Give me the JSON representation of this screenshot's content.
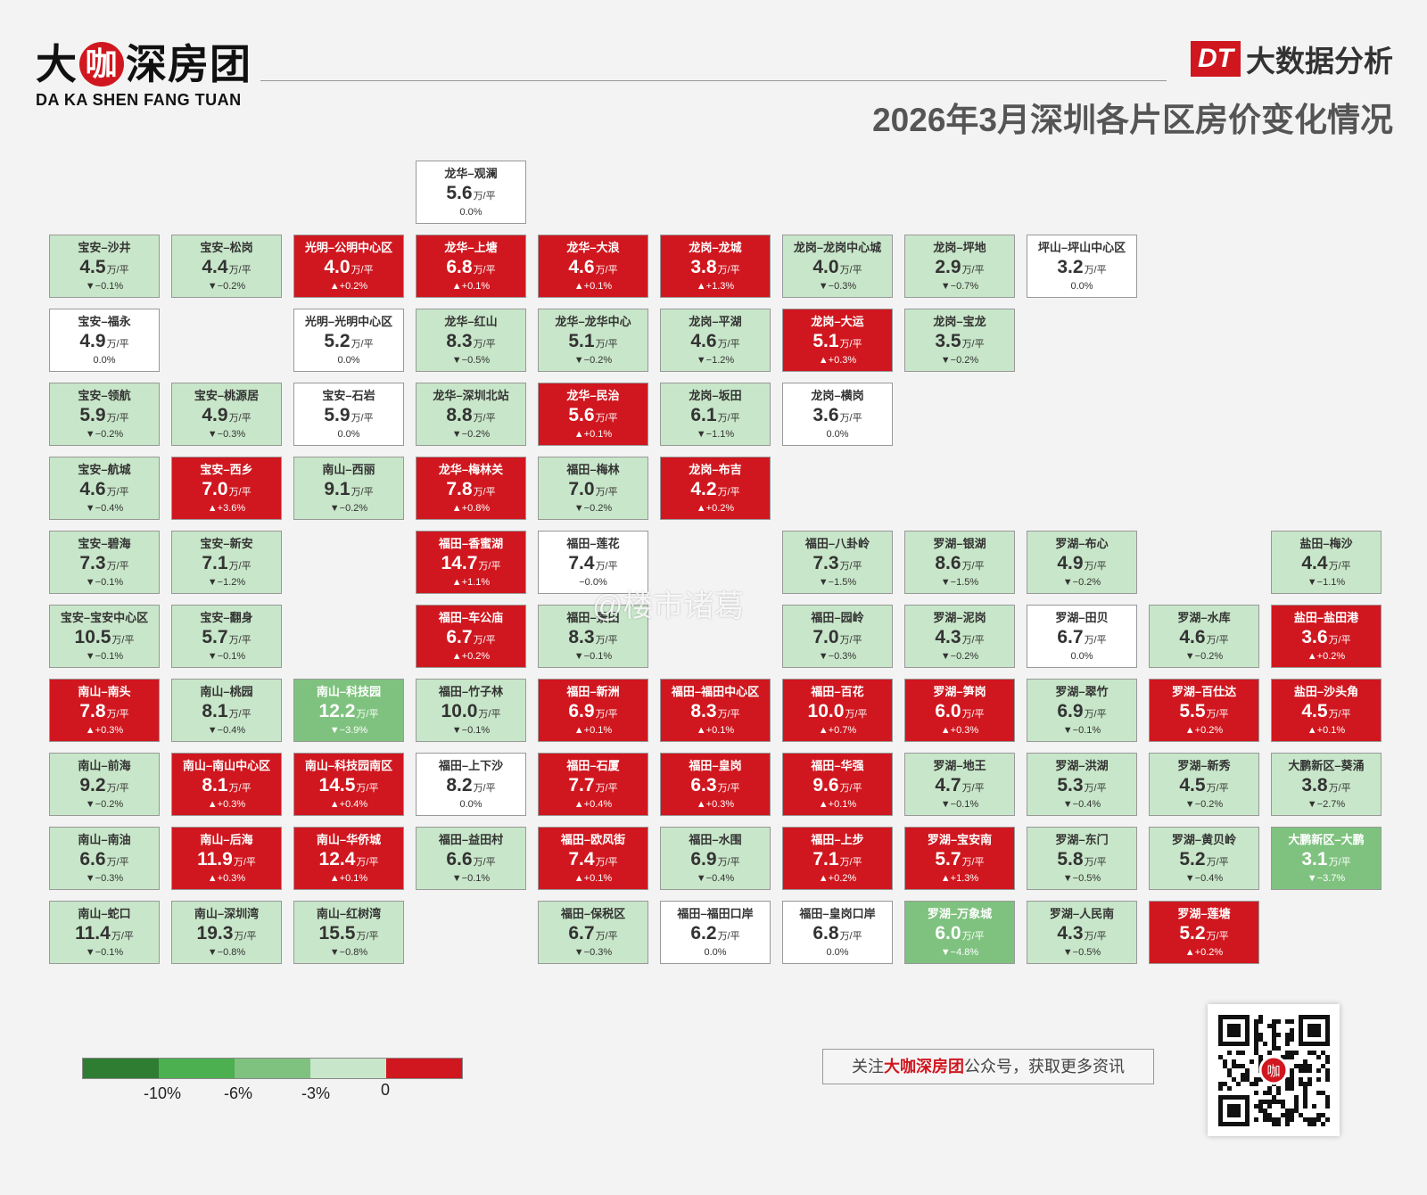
{
  "brand": {
    "logo_part1": "大",
    "logo_part2": "咖",
    "logo_part3": "深房团",
    "logo_sub": "DA KA SHEN FANG TUAN",
    "dt_badge": "DT",
    "dt_text": "大数据分析"
  },
  "chart_data": {
    "type": "heatmap",
    "title": "2026年3月深圳各片区房价变化情况",
    "unit": "万/平",
    "colors": {
      "rise": "#d0171f",
      "flat": "#ffffff",
      "fall_0_3": "#c8e6c9",
      "fall_3_6": "#7fc27f",
      "fall_6_10": "#4caf50",
      "fall_10_plus": "#2e7d32"
    },
    "cells": [
      {
        "name": "龙华–观澜",
        "price": "5.6",
        "change": "0.0%",
        "row": 0,
        "col": 3
      },
      {
        "name": "宝安–沙井",
        "price": "4.5",
        "change": "▼−0.1%",
        "row": 1,
        "col": 0
      },
      {
        "name": "宝安–松岗",
        "price": "4.4",
        "change": "▼−0.2%",
        "row": 1,
        "col": 1
      },
      {
        "name": "光明–公明中心区",
        "price": "4.0",
        "change": "▲+0.2%",
        "row": 1,
        "col": 2
      },
      {
        "name": "龙华–上塘",
        "price": "6.8",
        "change": "▲+0.1%",
        "row": 1,
        "col": 3
      },
      {
        "name": "龙华–大浪",
        "price": "4.6",
        "change": "▲+0.1%",
        "row": 1,
        "col": 4
      },
      {
        "name": "龙岗–龙城",
        "price": "3.8",
        "change": "▲+1.3%",
        "row": 1,
        "col": 5
      },
      {
        "name": "龙岗–龙岗中心城",
        "price": "4.0",
        "change": "▼−0.3%",
        "row": 1,
        "col": 6
      },
      {
        "name": "龙岗–坪地",
        "price": "2.9",
        "change": "▼−0.7%",
        "row": 1,
        "col": 7
      },
      {
        "name": "坪山–坪山中心区",
        "price": "3.2",
        "change": "0.0%",
        "row": 1,
        "col": 8
      },
      {
        "name": "宝安–福永",
        "price": "4.9",
        "change": "0.0%",
        "row": 2,
        "col": 0
      },
      {
        "name": "光明–光明中心区",
        "price": "5.2",
        "change": "0.0%",
        "row": 2,
        "col": 2
      },
      {
        "name": "龙华–红山",
        "price": "8.3",
        "change": "▼−0.5%",
        "row": 2,
        "col": 3
      },
      {
        "name": "龙华–龙华中心",
        "price": "5.1",
        "change": "▼−0.2%",
        "row": 2,
        "col": 4
      },
      {
        "name": "龙岗–平湖",
        "price": "4.6",
        "change": "▼−1.2%",
        "row": 2,
        "col": 5
      },
      {
        "name": "龙岗–大运",
        "price": "5.1",
        "change": "▲+0.3%",
        "row": 2,
        "col": 6
      },
      {
        "name": "龙岗–宝龙",
        "price": "3.5",
        "change": "▼−0.2%",
        "row": 2,
        "col": 7
      },
      {
        "name": "宝安–领航",
        "price": "5.9",
        "change": "▼−0.2%",
        "row": 3,
        "col": 0
      },
      {
        "name": "宝安–桃源居",
        "price": "4.9",
        "change": "▼−0.3%",
        "row": 3,
        "col": 1
      },
      {
        "name": "宝安–石岩",
        "price": "5.9",
        "change": "0.0%",
        "row": 3,
        "col": 2
      },
      {
        "name": "龙华–深圳北站",
        "price": "8.8",
        "change": "▼−0.2%",
        "row": 3,
        "col": 3
      },
      {
        "name": "龙华–民治",
        "price": "5.6",
        "change": "▲+0.1%",
        "row": 3,
        "col": 4
      },
      {
        "name": "龙岗–坂田",
        "price": "6.1",
        "change": "▼−1.1%",
        "row": 3,
        "col": 5
      },
      {
        "name": "龙岗–横岗",
        "price": "3.6",
        "change": "0.0%",
        "row": 3,
        "col": 6
      },
      {
        "name": "宝安–航城",
        "price": "4.6",
        "change": "▼−0.4%",
        "row": 4,
        "col": 0
      },
      {
        "name": "宝安–西乡",
        "price": "7.0",
        "change": "▲+3.6%",
        "row": 4,
        "col": 1
      },
      {
        "name": "南山–西丽",
        "price": "9.1",
        "change": "▼−0.2%",
        "row": 4,
        "col": 2
      },
      {
        "name": "龙华–梅林关",
        "price": "7.8",
        "change": "▲+0.8%",
        "row": 4,
        "col": 3
      },
      {
        "name": "福田–梅林",
        "price": "7.0",
        "change": "▼−0.2%",
        "row": 4,
        "col": 4
      },
      {
        "name": "龙岗–布吉",
        "price": "4.2",
        "change": "▲+0.2%",
        "row": 4,
        "col": 5
      },
      {
        "name": "宝安–碧海",
        "price": "7.3",
        "change": "▼−0.1%",
        "row": 5,
        "col": 0
      },
      {
        "name": "宝安–新安",
        "price": "7.1",
        "change": "▼−1.2%",
        "row": 5,
        "col": 1
      },
      {
        "name": "福田–香蜜湖",
        "price": "14.7",
        "change": "▲+1.1%",
        "row": 5,
        "col": 3
      },
      {
        "name": "福田–莲花",
        "price": "7.4",
        "change": "−0.0%",
        "row": 5,
        "col": 4
      },
      {
        "name": "福田–八卦岭",
        "price": "7.3",
        "change": "▼−1.5%",
        "row": 5,
        "col": 6
      },
      {
        "name": "罗湖–银湖",
        "price": "8.6",
        "change": "▼−1.5%",
        "row": 5,
        "col": 7
      },
      {
        "name": "罗湖–布心",
        "price": "4.9",
        "change": "▼−0.2%",
        "row": 5,
        "col": 8
      },
      {
        "name": "盐田–梅沙",
        "price": "4.4",
        "change": "▼−1.1%",
        "row": 5,
        "col": 10
      },
      {
        "name": "宝安–宝安中心区",
        "price": "10.5",
        "change": "▼−0.1%",
        "row": 6,
        "col": 0
      },
      {
        "name": "宝安–翻身",
        "price": "5.7",
        "change": "▼−0.1%",
        "row": 6,
        "col": 1
      },
      {
        "name": "福田–车公庙",
        "price": "6.7",
        "change": "▲+0.2%",
        "row": 6,
        "col": 3
      },
      {
        "name": "福田–景田",
        "price": "8.3",
        "change": "▼−0.1%",
        "row": 6,
        "col": 4
      },
      {
        "name": "福田–园岭",
        "price": "7.0",
        "change": "▼−0.3%",
        "row": 6,
        "col": 6
      },
      {
        "name": "罗湖–泥岗",
        "price": "4.3",
        "change": "▼−0.2%",
        "row": 6,
        "col": 7
      },
      {
        "name": "罗湖–田贝",
        "price": "6.7",
        "change": "0.0%",
        "row": 6,
        "col": 8
      },
      {
        "name": "罗湖–水库",
        "price": "4.6",
        "change": "▼−0.2%",
        "row": 6,
        "col": 9
      },
      {
        "name": "盐田–盐田港",
        "price": "3.6",
        "change": "▲+0.2%",
        "row": 6,
        "col": 10
      },
      {
        "name": "南山–南头",
        "price": "7.8",
        "change": "▲+0.3%",
        "row": 7,
        "col": 0
      },
      {
        "name": "南山–桃园",
        "price": "8.1",
        "change": "▼−0.4%",
        "row": 7,
        "col": 1
      },
      {
        "name": "南山–科技园",
        "price": "12.2",
        "change": "▼−3.9%",
        "row": 7,
        "col": 2
      },
      {
        "name": "福田–竹子林",
        "price": "10.0",
        "change": "▼−0.1%",
        "row": 7,
        "col": 3
      },
      {
        "name": "福田–新洲",
        "price": "6.9",
        "change": "▲+0.1%",
        "row": 7,
        "col": 4
      },
      {
        "name": "福田–福田中心区",
        "price": "8.3",
        "change": "▲+0.1%",
        "row": 7,
        "col": 5
      },
      {
        "name": "福田–百花",
        "price": "10.0",
        "change": "▲+0.7%",
        "row": 7,
        "col": 6
      },
      {
        "name": "罗湖–笋岗",
        "price": "6.0",
        "change": "▲+0.3%",
        "row": 7,
        "col": 7
      },
      {
        "name": "罗湖–翠竹",
        "price": "6.9",
        "change": "▼−0.1%",
        "row": 7,
        "col": 8
      },
      {
        "name": "罗湖–百仕达",
        "price": "5.5",
        "change": "▲+0.2%",
        "row": 7,
        "col": 9
      },
      {
        "name": "盐田–沙头角",
        "price": "4.5",
        "change": "▲+0.1%",
        "row": 7,
        "col": 10
      },
      {
        "name": "南山–前海",
        "price": "9.2",
        "change": "▼−0.2%",
        "row": 8,
        "col": 0
      },
      {
        "name": "南山–南山中心区",
        "price": "8.1",
        "change": "▲+0.3%",
        "row": 8,
        "col": 1
      },
      {
        "name": "南山–科技园南区",
        "price": "14.5",
        "change": "▲+0.4%",
        "row": 8,
        "col": 2
      },
      {
        "name": "福田–上下沙",
        "price": "8.2",
        "change": "0.0%",
        "row": 8,
        "col": 3
      },
      {
        "name": "福田–石厦",
        "price": "7.7",
        "change": "▲+0.4%",
        "row": 8,
        "col": 4
      },
      {
        "name": "福田–皇岗",
        "price": "6.3",
        "change": "▲+0.3%",
        "row": 8,
        "col": 5
      },
      {
        "name": "福田–华强",
        "price": "9.6",
        "change": "▲+0.1%",
        "row": 8,
        "col": 6
      },
      {
        "name": "罗湖–地王",
        "price": "4.7",
        "change": "▼−0.1%",
        "row": 8,
        "col": 7
      },
      {
        "name": "罗湖–洪湖",
        "price": "5.3",
        "change": "▼−0.4%",
        "row": 8,
        "col": 8
      },
      {
        "name": "罗湖–新秀",
        "price": "4.5",
        "change": "▼−0.2%",
        "row": 8,
        "col": 9
      },
      {
        "name": "大鹏新区–葵涌",
        "price": "3.8",
        "change": "▼−2.7%",
        "row": 8,
        "col": 10
      },
      {
        "name": "南山–南油",
        "price": "6.6",
        "change": "▼−0.3%",
        "row": 9,
        "col": 0
      },
      {
        "name": "南山–后海",
        "price": "11.9",
        "change": "▲+0.3%",
        "row": 9,
        "col": 1
      },
      {
        "name": "南山–华侨城",
        "price": "12.4",
        "change": "▲+0.1%",
        "row": 9,
        "col": 2
      },
      {
        "name": "福田–益田村",
        "price": "6.6",
        "change": "▼−0.1%",
        "row": 9,
        "col": 3
      },
      {
        "name": "福田–欧风街",
        "price": "7.4",
        "change": "▲+0.1%",
        "row": 9,
        "col": 4
      },
      {
        "name": "福田–水围",
        "price": "6.9",
        "change": "▼−0.4%",
        "row": 9,
        "col": 5
      },
      {
        "name": "福田–上步",
        "price": "7.1",
        "change": "▲+0.2%",
        "row": 9,
        "col": 6
      },
      {
        "name": "罗湖–宝安南",
        "price": "5.7",
        "change": "▲+1.3%",
        "row": 9,
        "col": 7
      },
      {
        "name": "罗湖–东门",
        "price": "5.8",
        "change": "▼−0.5%",
        "row": 9,
        "col": 8
      },
      {
        "name": "罗湖–黄贝岭",
        "price": "5.2",
        "change": "▼−0.4%",
        "row": 9,
        "col": 9
      },
      {
        "name": "大鹏新区–大鹏",
        "price": "3.1",
        "change": "▼−3.7%",
        "row": 9,
        "col": 10
      },
      {
        "name": "南山–蛇口",
        "price": "11.4",
        "change": "▼−0.1%",
        "row": 10,
        "col": 0
      },
      {
        "name": "南山–深圳湾",
        "price": "19.3",
        "change": "▼−0.8%",
        "row": 10,
        "col": 1
      },
      {
        "name": "南山–红树湾",
        "price": "15.5",
        "change": "▼−0.8%",
        "row": 10,
        "col": 2
      },
      {
        "name": "福田–保税区",
        "price": "6.7",
        "change": "▼−0.3%",
        "row": 10,
        "col": 4
      },
      {
        "name": "福田–福田口岸",
        "price": "6.2",
        "change": "0.0%",
        "row": 10,
        "col": 5
      },
      {
        "name": "福田–皇岗口岸",
        "price": "6.8",
        "change": "0.0%",
        "row": 10,
        "col": 6
      },
      {
        "name": "罗湖–万象城",
        "price": "6.0",
        "change": "▼−4.8%",
        "row": 10,
        "col": 7
      },
      {
        "name": "罗湖–人民南",
        "price": "4.3",
        "change": "▼−0.5%",
        "row": 10,
        "col": 8
      },
      {
        "name": "罗湖–莲塘",
        "price": "5.2",
        "change": "▲+0.2%",
        "row": 10,
        "col": 9
      }
    ],
    "legend": {
      "labels": [
        "-10%",
        "-6%",
        "-3%",
        "0"
      ],
      "swatches": [
        "#2e7d32",
        "#4caf50",
        "#7fc27f",
        "#c8e6c9",
        "#d0171f"
      ]
    }
  },
  "footer": {
    "follow_prefix": "关注",
    "follow_brand": "大咖深房团",
    "follow_suffix": "公众号，获取更多资讯",
    "watermark": "@楼市诸葛",
    "qr_center": "咖"
  }
}
